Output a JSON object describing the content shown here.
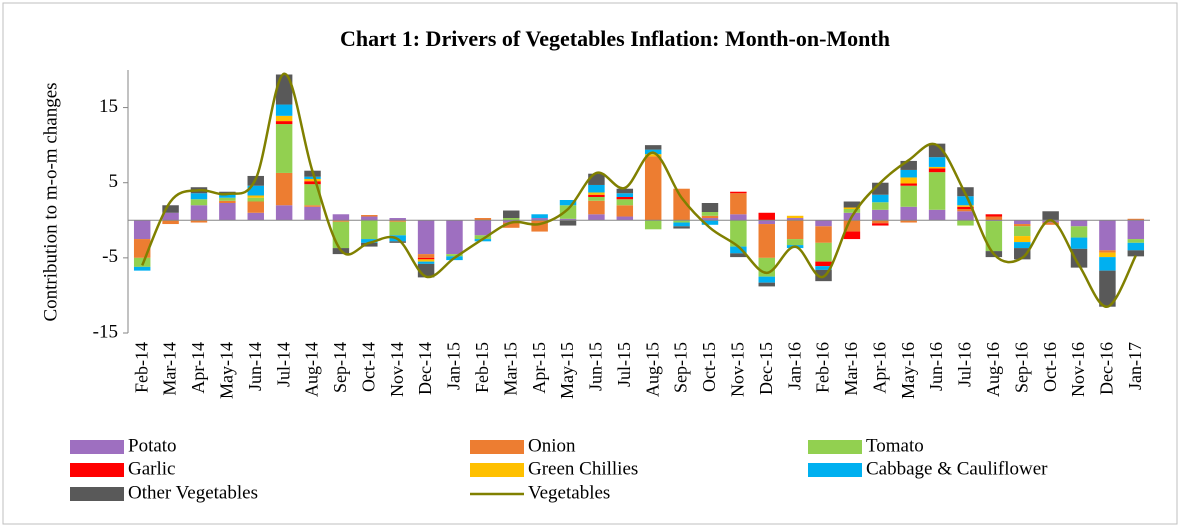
{
  "chart_data": {
    "type": "stacked_bar_line",
    "title": "Chart 1: Drivers of Vegetables Inflation: Month-on-Month",
    "y_label": "Contribution to m-o-m changes",
    "categories": [
      "Feb-14",
      "Mar-14",
      "Apr-14",
      "May-14",
      "Jun-14",
      "Jul-14",
      "Aug-14",
      "Sep-14",
      "Oct-14",
      "Nov-14",
      "Dec-14",
      "Jan-15",
      "Feb-15",
      "Mar-15",
      "Apr-15",
      "May-15",
      "Jun-15",
      "Jul-15",
      "Aug-15",
      "Sep-15",
      "Oct-15",
      "Nov-15",
      "Dec-15",
      "Jan-16",
      "Feb-16",
      "Mar-16",
      "Apr-16",
      "May-16",
      "Jun-16",
      "Jul-16",
      "Aug-16",
      "Sep-16",
      "Oct-16",
      "Nov-16",
      "Dec-16",
      "Jan-17"
    ],
    "ylim": [
      -15,
      20
    ],
    "yticks": [
      -15,
      -5,
      5,
      15
    ],
    "series": [
      {
        "name": "Potato",
        "color": "#9e6fc0",
        "values": [
          -2.5,
          1,
          2,
          2.3,
          1,
          2,
          1.8,
          0.8,
          0.5,
          0.3,
          -4.5,
          -4.5,
          -2,
          -0.3,
          0.3,
          0.2,
          0.8,
          0.5,
          0,
          0,
          0.3,
          0.8,
          -0.5,
          0.3,
          -0.8,
          1,
          1.4,
          1.8,
          1.4,
          1.2,
          -0.1,
          -0.5,
          -0.3,
          -0.8,
          -4,
          -2.5
        ]
      },
      {
        "name": "Onion",
        "color": "#ed7d31",
        "values": [
          -2.5,
          -0.5,
          -0.3,
          0.3,
          1.5,
          4.3,
          0.2,
          -0.2,
          0.2,
          -0.2,
          -0.5,
          0,
          0.3,
          -0.7,
          -1.5,
          0,
          1.8,
          1.5,
          8.5,
          4.2,
          0.3,
          2.8,
          -4.5,
          -2.5,
          -2.2,
          -1.5,
          -0.4,
          -0.3,
          0,
          0.3,
          0.5,
          -0.3,
          -0.3,
          0,
          -0.3,
          0.2
        ]
      },
      {
        "name": "Tomato",
        "color": "#92d050",
        "values": [
          -1.2,
          0,
          0.8,
          0.4,
          0.5,
          6.5,
          2.8,
          -3.5,
          -2.5,
          -1.8,
          0,
          -0.3,
          -0.5,
          0.3,
          0,
          1.8,
          0.5,
          0.8,
          -1.2,
          -0.3,
          0.5,
          -3.5,
          -2.5,
          -0.8,
          -2.5,
          0.5,
          1,
          2.8,
          5,
          -0.7,
          -4,
          -1.3,
          0,
          -1.5,
          0,
          -0.5
        ]
      },
      {
        "name": "Garlic",
        "color": "#ff0000",
        "values": [
          0,
          0,
          0,
          0,
          0,
          0.4,
          0.4,
          0,
          0,
          0,
          -0.2,
          0,
          0,
          0,
          0,
          0,
          0.3,
          0.3,
          0,
          0,
          0,
          0.2,
          1,
          0,
          -0.6,
          -1,
          -0.3,
          0.3,
          0.5,
          0.3,
          0.3,
          0,
          0,
          0,
          0,
          0
        ]
      },
      {
        "name": "Green Chillies",
        "color": "#ffc000",
        "values": [
          0,
          0,
          0,
          0,
          0.3,
          0.7,
          0.3,
          0,
          0,
          0,
          -0.3,
          0,
          0,
          0,
          0,
          0,
          0.3,
          0,
          0.3,
          0,
          0,
          0,
          0,
          0.3,
          0,
          0.2,
          0,
          0.8,
          0.2,
          0.2,
          0,
          -0.8,
          0,
          0,
          -0.6,
          0
        ]
      },
      {
        "name": "Cabbage & Cauliflower",
        "color": "#00b0f0",
        "values": [
          -0.5,
          0,
          0.8,
          0.5,
          1.3,
          1.5,
          0.3,
          0,
          -0.5,
          -0.8,
          -0.3,
          -0.5,
          -0.3,
          0,
          0.5,
          0.7,
          1,
          0.5,
          0.6,
          -0.5,
          -0.6,
          -0.9,
          -0.8,
          -0.4,
          -0.5,
          0,
          1,
          1,
          1.3,
          1.2,
          0,
          -0.8,
          0,
          -1.5,
          -1.8,
          -1
        ]
      },
      {
        "name": "Other Vegetables",
        "color": "#595959",
        "values": [
          0,
          1,
          0.8,
          0.3,
          1.3,
          4,
          0.8,
          -0.8,
          -0.5,
          -0.2,
          -1.8,
          0,
          0,
          1,
          0,
          -0.7,
          1.5,
          0.6,
          0.6,
          -0.3,
          1.2,
          -0.5,
          -0.5,
          0,
          -1.5,
          0.8,
          1.6,
          1.2,
          1.8,
          1.2,
          -0.8,
          -1.5,
          1.2,
          -2.5,
          -4.8,
          -0.8
        ]
      },
      {
        "name": "Vegetables",
        "color": "#808000",
        "type": "line",
        "values": [
          -6,
          2.5,
          4,
          3.5,
          5.5,
          19.5,
          6.5,
          -4,
          -3,
          -2.5,
          -7.5,
          -5,
          -2.5,
          -0.3,
          -0.5,
          1.5,
          6.3,
          4.3,
          9,
          3,
          -1,
          -3.5,
          -7,
          -3.5,
          -7.5,
          0.5,
          5,
          8,
          10,
          3.5,
          -4.5,
          -5,
          0,
          -6,
          -11.5,
          -4.7
        ]
      }
    ]
  }
}
